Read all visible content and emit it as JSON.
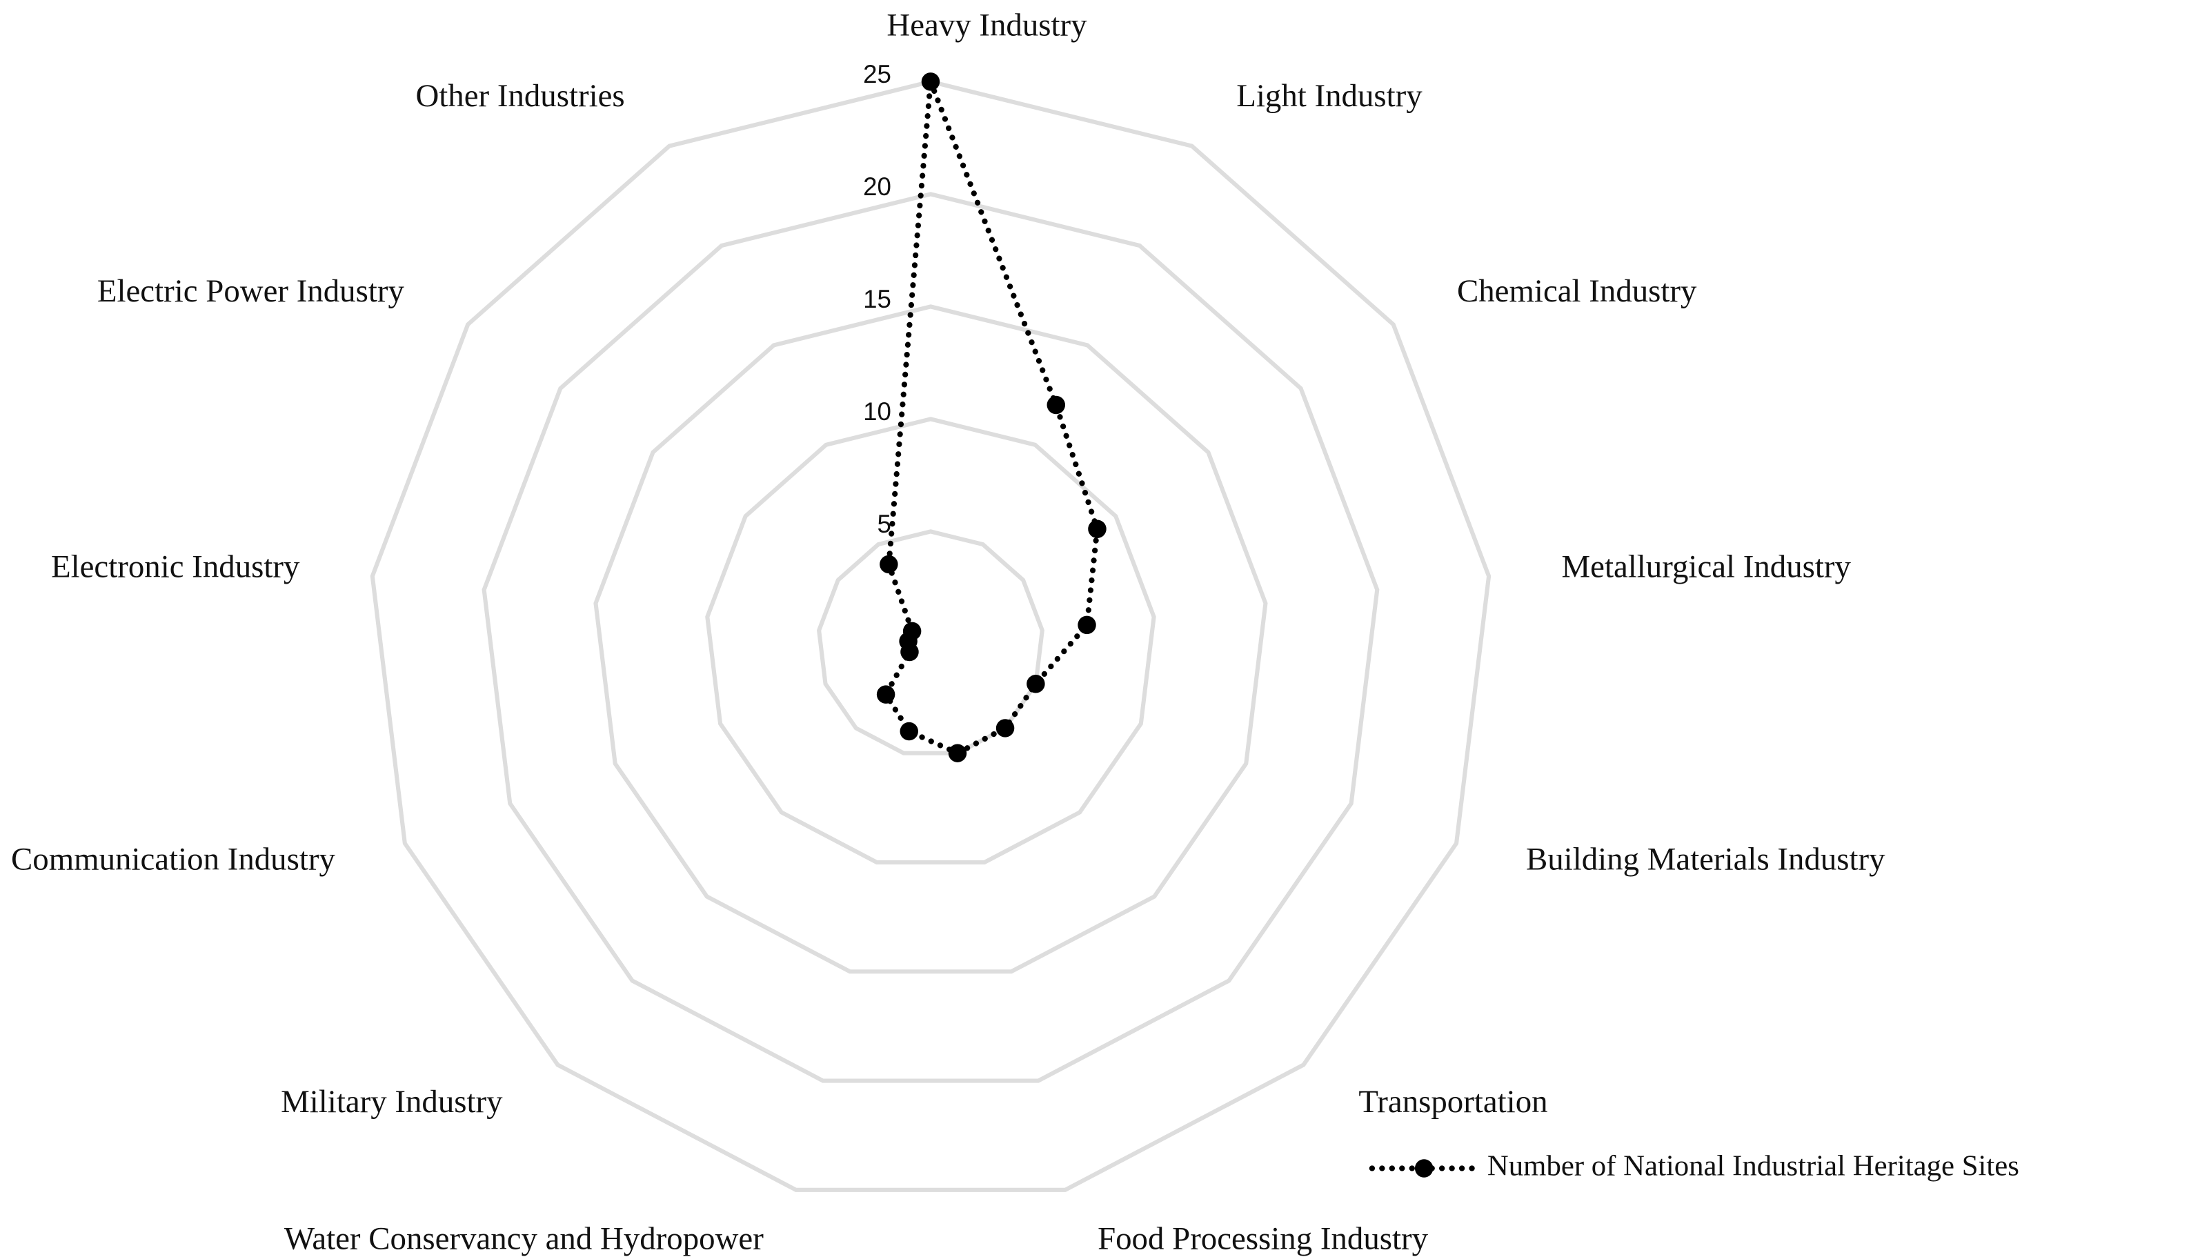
{
  "chart_data": {
    "type": "radar",
    "categories": [
      "Heavy Industry",
      "Light Industry",
      "Chemical Industry",
      "Metallurgical Industry",
      "Building Materials Industry",
      "Transportation",
      "Food Processing Industry",
      "Water Conservancy and Hydropower",
      "Military Industry",
      "Communication Industry",
      "Electronic Industry",
      "Electric Power Industry",
      "Other Industries"
    ],
    "series": [
      {
        "name": "Number of National Industrial Heritage Sites",
        "color": "#000000",
        "values": [
          25,
          12,
          9,
          7,
          5,
          5,
          5,
          4,
          3,
          1,
          1,
          1,
          4
        ]
      }
    ],
    "ylim": [
      0,
      25
    ],
    "yticks": [
      5,
      10,
      15,
      20,
      25
    ],
    "grid": true,
    "legend": "bottom-right"
  }
}
